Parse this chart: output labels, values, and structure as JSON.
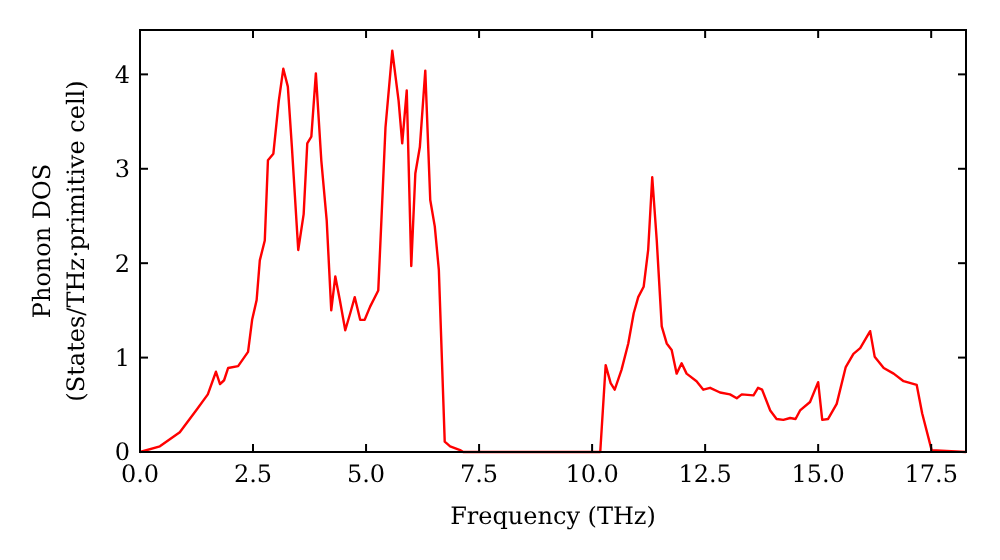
{
  "chart_data": {
    "type": "line",
    "xlabel": "Frequency (THz)",
    "ylabel": "Phonon DOS\n(States/THz·primitive cell)",
    "x": [
      0,
      0.44,
      0.88,
      1.24,
      1.5,
      1.68,
      1.77,
      1.86,
      1.95,
      2.17,
      2.39,
      2.48,
      2.58,
      2.65,
      2.76,
      2.83,
      2.95,
      3.07,
      3.17,
      3.27,
      3.36,
      3.5,
      3.62,
      3.7,
      3.79,
      3.89,
      4.01,
      4.13,
      4.23,
      4.32,
      4.42,
      4.54,
      4.65,
      4.75,
      4.87,
      4.97,
      5.09,
      5.27,
      5.34,
      5.43,
      5.58,
      5.72,
      5.8,
      5.9,
      6,
      6.09,
      6.19,
      6.31,
      6.42,
      6.52,
      6.61,
      6.74,
      6.86,
      7.08,
      7.15,
      10.18,
      10.3,
      10.41,
      10.5,
      10.65,
      10.8,
      10.92,
      11.02,
      11.14,
      11.24,
      11.33,
      11.43,
      11.54,
      11.65,
      11.76,
      11.87,
      11.98,
      12.09,
      12.31,
      12.46,
      12.61,
      12.83,
      13.05,
      13.2,
      13.31,
      13.57,
      13.67,
      13.76,
      13.94,
      14.08,
      14.23,
      14.38,
      14.5,
      14.6,
      14.82,
      15,
      15.09,
      15.22,
      15.41,
      15.61,
      15.78,
      15.93,
      16.15,
      16.25,
      16.45,
      16.67,
      16.89,
      17.18,
      17.3,
      17.51,
      18.27
    ],
    "series": [
      {
        "color": "#ff0000",
        "values": [
          0,
          0.06,
          0.21,
          0.44,
          0.61,
          0.85,
          0.72,
          0.76,
          0.89,
          0.91,
          1.06,
          1.4,
          1.61,
          2.03,
          2.24,
          3.09,
          3.16,
          3.72,
          4.06,
          3.87,
          3.23,
          2.14,
          2.52,
          3.27,
          3.34,
          4.01,
          3.09,
          2.45,
          1.5,
          1.86,
          1.61,
          1.29,
          1.47,
          1.64,
          1.4,
          1.4,
          1.54,
          1.71,
          2.46,
          3.44,
          4.25,
          3.72,
          3.27,
          3.83,
          1.97,
          2.95,
          3.23,
          4.04,
          2.67,
          2.39,
          1.93,
          0.11,
          0.06,
          0.02,
          0,
          0,
          0.92,
          0.73,
          0.66,
          0.87,
          1.15,
          1.47,
          1.64,
          1.75,
          2.14,
          2.91,
          2.24,
          1.33,
          1.15,
          1.08,
          0.83,
          0.94,
          0.83,
          0.75,
          0.66,
          0.68,
          0.63,
          0.61,
          0.57,
          0.61,
          0.6,
          0.68,
          0.66,
          0.44,
          0.35,
          0.34,
          0.36,
          0.35,
          0.44,
          0.53,
          0.74,
          0.34,
          0.35,
          0.51,
          0.9,
          1.04,
          1.1,
          1.28,
          1.01,
          0.89,
          0.83,
          0.75,
          0.71,
          0.41,
          0.02,
          0
        ]
      }
    ],
    "xlim": [
      0,
      18.27
    ],
    "xticks": [
      {
        "value": 0,
        "label": "0.0"
      },
      {
        "value": 2.5,
        "label": "2.5"
      },
      {
        "value": 5,
        "label": "5.0"
      },
      {
        "value": 7.5,
        "label": "7.5"
      },
      {
        "value": 10,
        "label": "10.0"
      },
      {
        "value": 12.5,
        "label": "12.5"
      },
      {
        "value": 15,
        "label": "15.0"
      },
      {
        "value": 17.5,
        "label": "17.5"
      }
    ],
    "ylim": [
      0,
      4.47
    ],
    "yticks": [
      0,
      1,
      2,
      3,
      4
    ],
    "marker": "none",
    "line_style": "solid"
  }
}
